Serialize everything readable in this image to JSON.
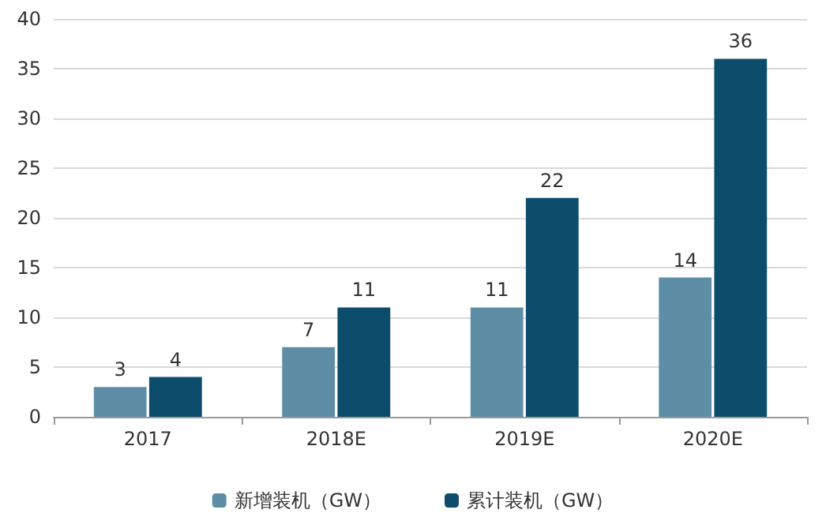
{
  "chart_data": {
    "type": "bar",
    "categories": [
      "2017",
      "2018E",
      "2019E",
      "2020E"
    ],
    "series": [
      {
        "name": "新增装机（GW）",
        "color": "#5e8ea6",
        "values": [
          3,
          7,
          11,
          14
        ]
      },
      {
        "name": "累计装机（GW）",
        "color": "#0d4d6c",
        "values": [
          4,
          11,
          22,
          36
        ]
      }
    ],
    "ylim": [
      0,
      40
    ],
    "yticks": [
      0,
      5,
      10,
      15,
      20,
      25,
      30,
      35,
      40
    ],
    "grid": "y",
    "legend": "bottom",
    "data_labels": true
  }
}
